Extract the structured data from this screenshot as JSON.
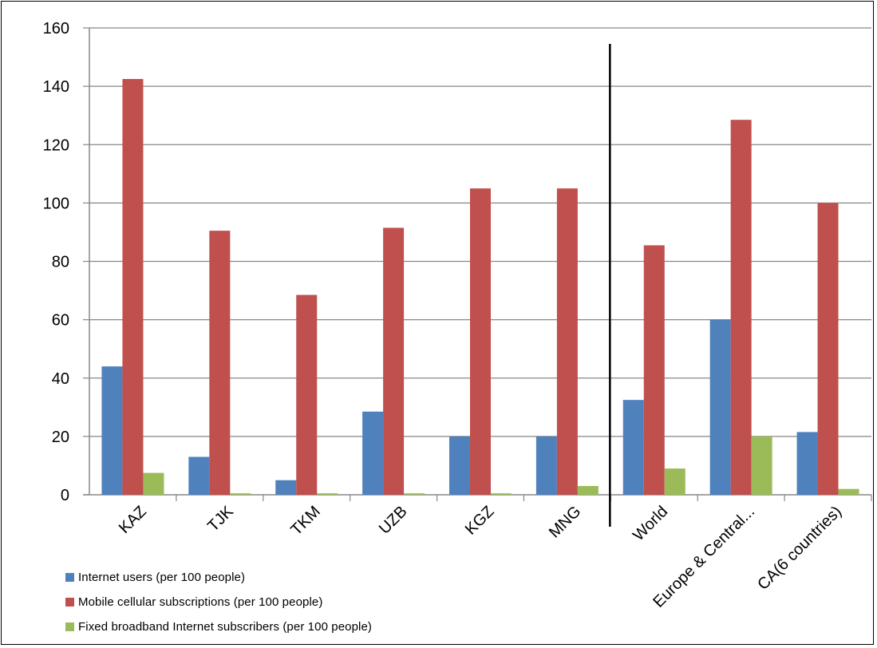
{
  "chart_data": {
    "type": "bar",
    "categories": [
      "KAZ",
      "TJK",
      "TKM",
      "UZB",
      "KGZ",
      "MNG",
      "World",
      "Europe & Central...",
      "CA(6 countries)"
    ],
    "series": [
      {
        "name": "Internet users (per 100 people)",
        "color": "#4F81BD",
        "values": [
          44,
          13,
          5,
          28.5,
          20,
          20,
          32.5,
          60,
          21.5
        ]
      },
      {
        "name": "Mobile cellular subscriptions (per 100 people)",
        "color": "#C0504D",
        "values": [
          142.5,
          90.5,
          68.5,
          91.5,
          105,
          105,
          85.5,
          128.5,
          100
        ]
      },
      {
        "name": "Fixed broadband Internet subscribers (per 100 people)",
        "color": "#9BBB59",
        "values": [
          7.5,
          0.5,
          0.5,
          0.5,
          0.5,
          3,
          9,
          20,
          2
        ]
      }
    ],
    "ylim": [
      0,
      160
    ],
    "yticks": [
      0,
      20,
      40,
      60,
      80,
      100,
      120,
      140,
      160
    ],
    "grid": true,
    "separator_after_category": "MNG",
    "legend_position": "bottom-left",
    "title": "",
    "xlabel": "",
    "ylabel": ""
  }
}
